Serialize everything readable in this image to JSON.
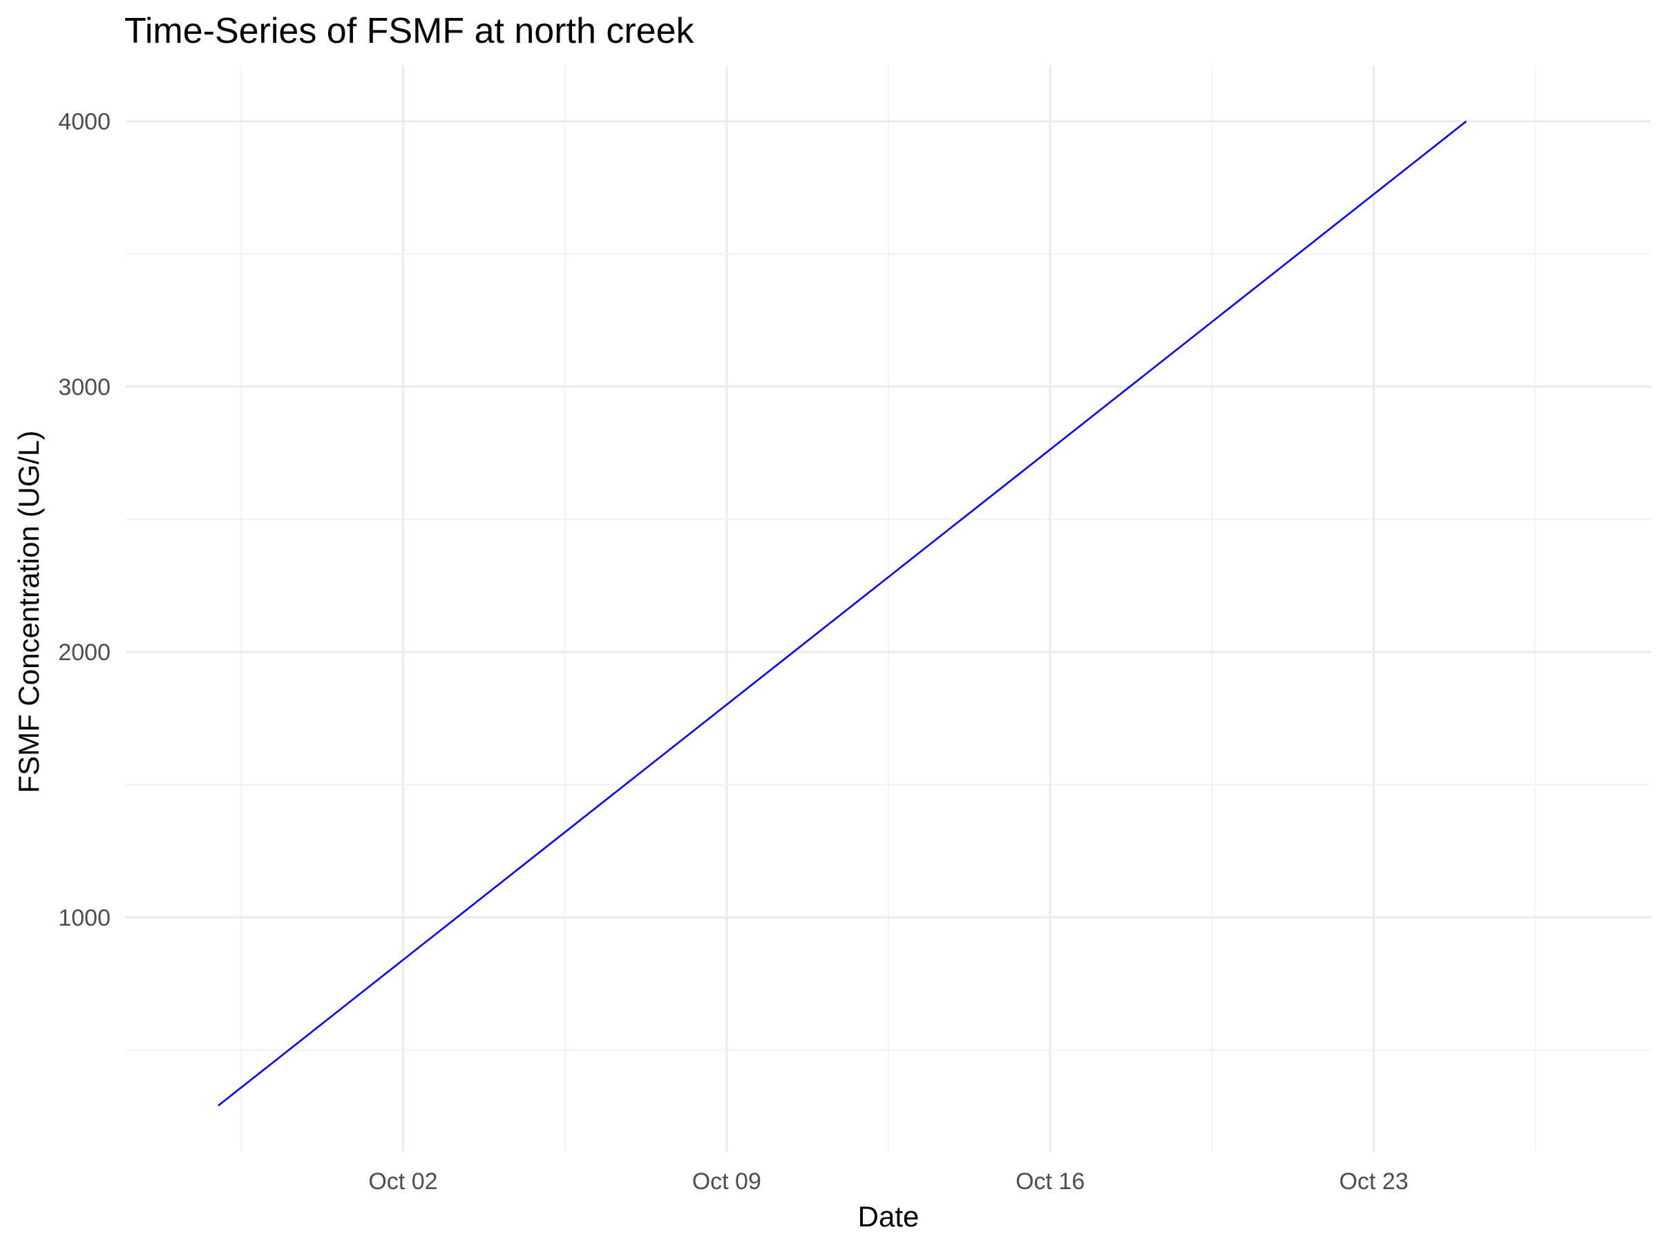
{
  "chart_data": {
    "type": "line",
    "title": "Time-Series of FSMF at north creek",
    "xlabel": "Date",
    "ylabel": "FSMF Concentration (UG/L)",
    "x_type": "date",
    "x_ticks": [
      {
        "date": "2023-10-02",
        "label": "Oct 02"
      },
      {
        "date": "2023-10-09",
        "label": "Oct 09"
      },
      {
        "date": "2023-10-16",
        "label": "Oct 16"
      },
      {
        "date": "2023-10-23",
        "label": "Oct 23"
      }
    ],
    "y_ticks": [
      1000,
      2000,
      3000,
      4000
    ],
    "xlim": [
      "2023-09-26",
      "2023-10-29"
    ],
    "ylim": [
      116,
      4210
    ],
    "grid": true,
    "series": [
      {
        "color": "#0000ff",
        "points": [
          {
            "x": "2023-09-28",
            "y": 290
          },
          {
            "x": "2023-10-25",
            "y": 4000
          }
        ]
      }
    ]
  }
}
